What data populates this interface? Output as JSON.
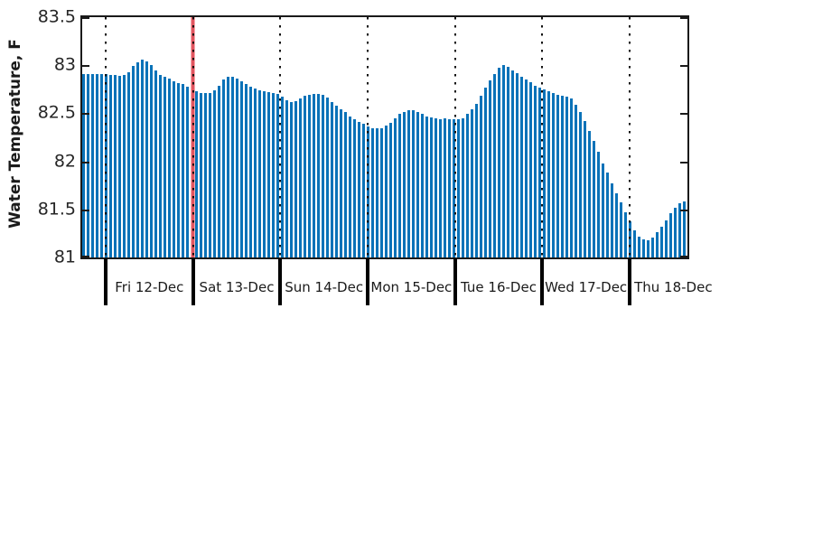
{
  "chart_data": {
    "type": "bar",
    "title": "",
    "ylabel": "Water Temperature, F",
    "xlabel": "",
    "ylim": [
      81,
      83.5
    ],
    "yticks": [
      83.5,
      83.0,
      82.5,
      82.0,
      81.5,
      81.0
    ],
    "ytick_labels": [
      "83.5",
      "83",
      "82.5",
      "82",
      "81.5",
      "81"
    ],
    "legend": "none",
    "grid": "vertical dotted day-separator lines inside plot",
    "x_axis": {
      "day_labels": [
        "Fri 12-Dec",
        "Sat 13-Dec",
        "Sun 14-Dec",
        "Mon 15-Dec",
        "Tue 16-Dec",
        "Wed 17-Dec",
        "Thu 18-Dec"
      ],
      "num_separators": 7,
      "separator_style": "dotted-black",
      "red_line_at_separator_index": 1
    },
    "series_name": "Water Temperature",
    "values": [
      82.91,
      82.91,
      82.91,
      82.91,
      82.91,
      82.91,
      82.9,
      82.9,
      82.89,
      82.9,
      82.93,
      82.99,
      83.03,
      83.06,
      83.04,
      83.0,
      82.95,
      82.9,
      82.88,
      82.86,
      82.83,
      82.81,
      82.8,
      82.78,
      82.76,
      82.73,
      82.71,
      82.71,
      82.71,
      82.74,
      82.79,
      82.85,
      82.88,
      82.88,
      82.86,
      82.83,
      82.8,
      82.78,
      82.76,
      82.74,
      82.73,
      82.72,
      82.71,
      82.7,
      82.67,
      82.64,
      82.62,
      82.63,
      82.65,
      82.68,
      82.69,
      82.7,
      82.7,
      82.69,
      82.66,
      82.62,
      82.58,
      82.54,
      82.51,
      82.47,
      82.44,
      82.41,
      82.39,
      82.36,
      82.34,
      82.34,
      82.34,
      82.37,
      82.4,
      82.45,
      82.49,
      82.51,
      82.53,
      82.53,
      82.51,
      82.49,
      82.47,
      82.46,
      82.45,
      82.44,
      82.45,
      82.44,
      82.44,
      82.44,
      82.45,
      82.49,
      82.54,
      82.6,
      82.68,
      82.77,
      82.84,
      82.91,
      82.97,
      83.0,
      82.98,
      82.95,
      82.92,
      82.88,
      82.85,
      82.82,
      82.79,
      82.77,
      82.75,
      82.73,
      82.71,
      82.69,
      82.68,
      82.67,
      82.65,
      82.59,
      82.51,
      82.42,
      82.32,
      82.21,
      82.1,
      81.98,
      81.88,
      81.77,
      81.67,
      81.57,
      81.47,
      81.38,
      81.28,
      81.22,
      81.19,
      81.18,
      81.21,
      81.26,
      81.32,
      81.39,
      81.46,
      81.52,
      81.56,
      81.58,
      81.54
    ],
    "bar_color": "#0a72b8",
    "axis_color": "#1a1a1a",
    "text_color": "#262626",
    "red_line_color": "#e25560"
  }
}
